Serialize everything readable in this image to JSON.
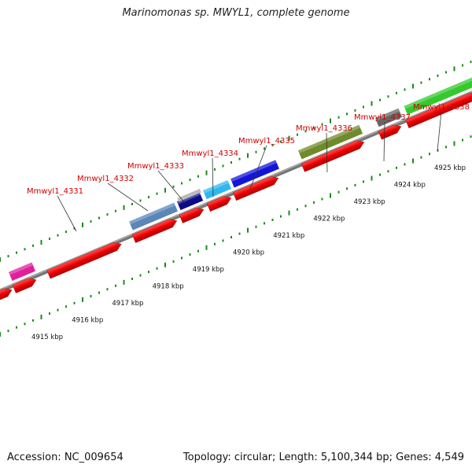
{
  "title": "Marinomonas sp. MWYL1, complete genome",
  "footer": {
    "accession": "Accession: NC_009654",
    "topology": "Topology: circular; Length: 5,100,344 bp; Genes: 4,549"
  },
  "gene_labels": [
    {
      "text": "Mmwyl1_4331",
      "anchor_kbp": 4916.6
    },
    {
      "text": "Mmwyl1_4332",
      "anchor_kbp": 4918.0
    },
    {
      "text": "Mmwyl1_4333",
      "anchor_kbp": 4918.9
    },
    {
      "text": "Mmwyl1_4334",
      "anchor_kbp": 4919.5
    },
    {
      "text": "Mmwyl1_4335",
      "anchor_kbp": 4920.3
    },
    {
      "text": "Mmwyl1_4336",
      "anchor_kbp": 4922.0
    },
    {
      "text": "Mmwyl1_4337",
      "anchor_kbp": 4923.4
    },
    {
      "text": "Mmwyl1_4338",
      "anchor_kbp": 4924.7
    }
  ],
  "kbp_ticks": [
    "4915 kbp",
    "4916 kbp",
    "4917 kbp",
    "4918 kbp",
    "4919 kbp",
    "4920 kbp",
    "4921 kbp",
    "4922 kbp",
    "4923 kbp",
    "4924 kbp",
    "4925 kbp"
  ],
  "colors": {
    "label_red": "#d10000",
    "gene_red": "#ee0000",
    "backbone": "#888888",
    "tick_green": "#1a8a1a",
    "magenta": "#e0209a",
    "steel_blue": "#5a86b8",
    "navy": "#0c0c8a",
    "grey_light": "#bbbbbb",
    "cyan": "#2fb8f0",
    "blue": "#1414d8",
    "olive": "#6f8a2a",
    "dark_grey": "#666666",
    "green": "#35c92e"
  }
}
